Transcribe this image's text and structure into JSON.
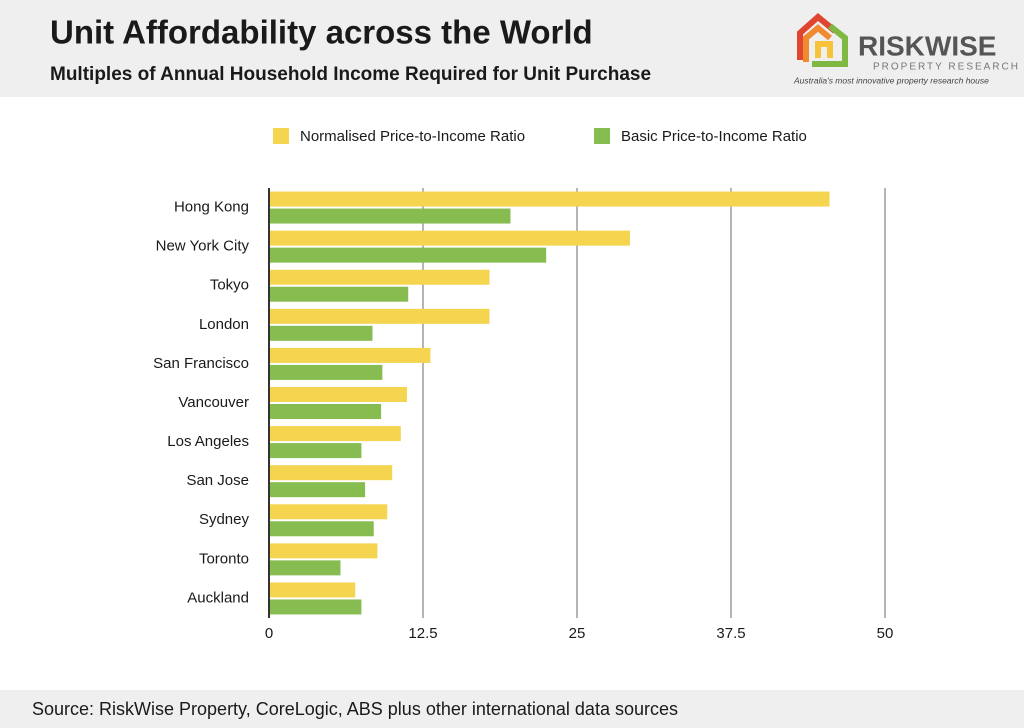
{
  "chart_data": {
    "type": "bar",
    "orientation": "horizontal",
    "title": "Unit Affordability across the World",
    "subtitle": "Multiples of Annual Household Income Required for Unit Purchase",
    "categories": [
      "Hong Kong",
      "New York City",
      "Tokyo",
      "London",
      "San Francisco",
      "Vancouver",
      "Los Angeles",
      "San Jose",
      "Sydney",
      "Toronto",
      "Auckland"
    ],
    "series": [
      {
        "name": "Normalised Price-to-Income Ratio",
        "color": "#f5d54f",
        "values": [
          45.5,
          29.3,
          17.9,
          17.9,
          13.1,
          11.2,
          10.7,
          10.0,
          9.6,
          8.8,
          7.0
        ]
      },
      {
        "name": "Basic Price-to-Income Ratio",
        "color": "#86bc50",
        "values": [
          19.6,
          22.5,
          11.3,
          8.4,
          9.2,
          9.1,
          7.5,
          7.8,
          8.5,
          5.8,
          7.5
        ]
      }
    ],
    "xlim": [
      0,
      50
    ],
    "xticks": [
      0,
      12.5,
      25,
      37.5,
      50
    ],
    "grid": true,
    "legend": "top"
  },
  "logo": {
    "name": "RISKWISE",
    "subtitle": "PROPERTY RESEARCH",
    "tagline": "Australia's most innovative property research house"
  },
  "source": "Source: RiskWise Property, CoreLogic, ABS plus other international data sources"
}
